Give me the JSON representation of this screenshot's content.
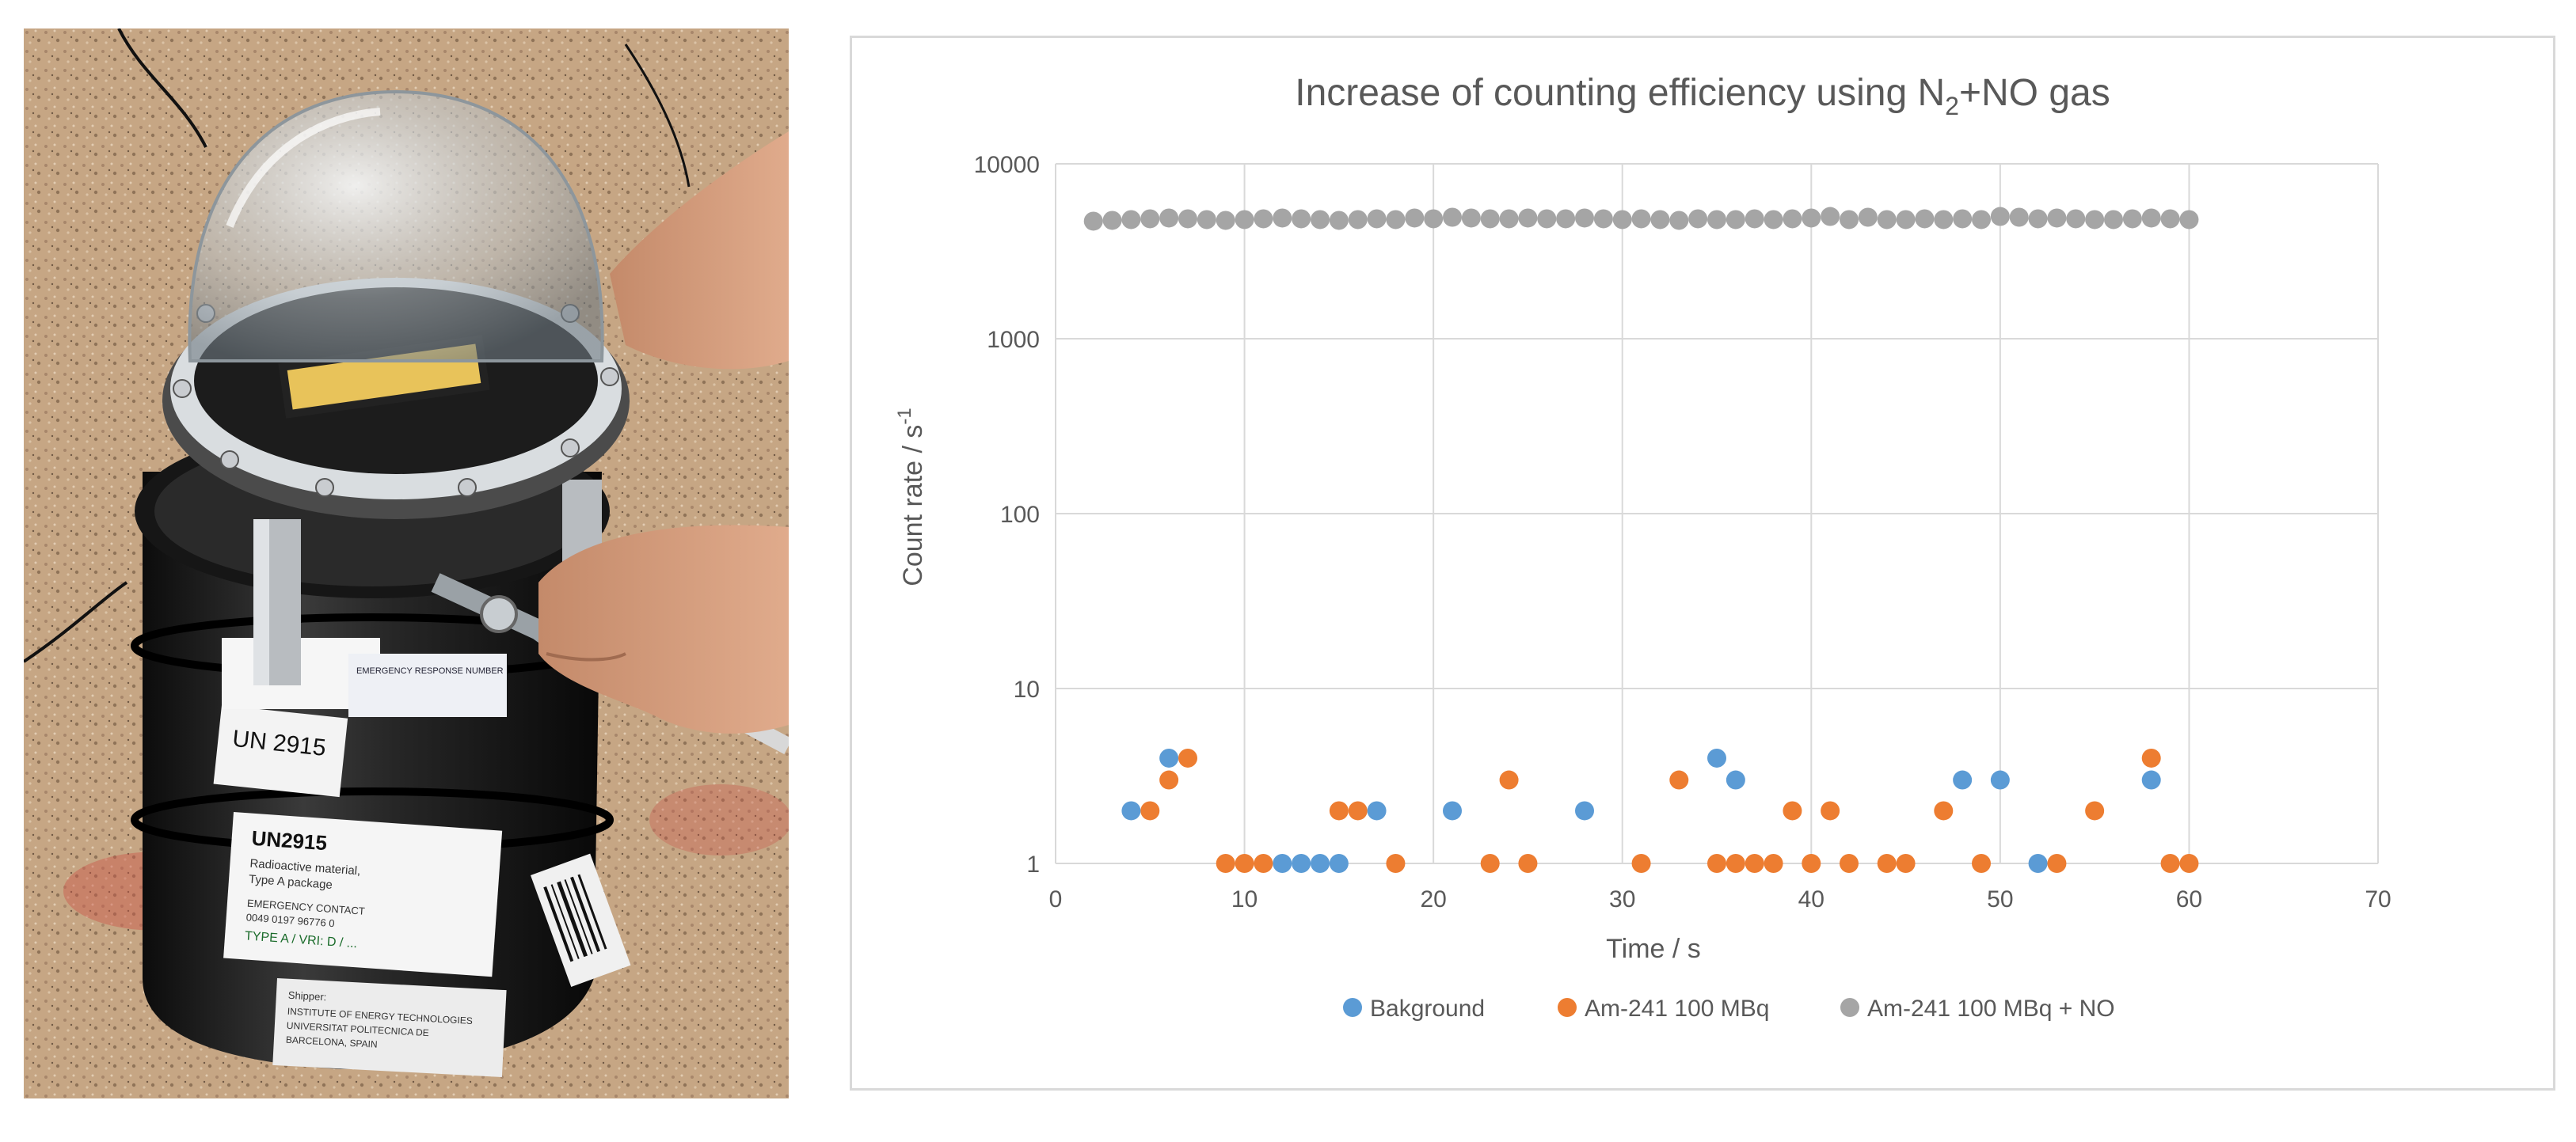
{
  "photo": {
    "label_un2915": "UN 2915",
    "label_un2915_body": "UN2915",
    "label_radioactive": "Radioactive material,",
    "label_type_a": "Type A package",
    "label_emergency": "EMERGENCY CONTACT",
    "label_phone": "0049 0197 96776 0",
    "label_handwritten": "TYPE A / VRI: D / ...",
    "label_emergency_response": "EMERGENCY RESPONSE NUMBER",
    "label_shipper": "Shipper:",
    "label_shipper_line": "INSTITUTE OF ENERGY TECHNOLOGIES",
    "label_shipper_univ": "UNIVERSITAT POLITECNICA DE",
    "label_shipper_city": "BARCELONA, SPAIN"
  },
  "chart_data": {
    "type": "scatter",
    "title_main": "Increase of counting efficiency using N",
    "title_sub": "2",
    "title_tail": "+NO gas",
    "xlabel": "Time / s",
    "ylabel_main": "Count rate  / s",
    "ylabel_sup": "-1",
    "xlim": [
      0,
      70
    ],
    "ylim": [
      1,
      10000
    ],
    "yscale": "log",
    "grid": true,
    "legend_position": "bottom",
    "x_ticks": [
      "0",
      "10",
      "20",
      "30",
      "40",
      "50",
      "60",
      "70"
    ],
    "y_ticks": [
      "1",
      "10",
      "100",
      "1000",
      "10000"
    ],
    "series": [
      {
        "name": "Bakground",
        "color": "#5b9bd5",
        "points": [
          [
            4,
            2
          ],
          [
            6,
            4
          ],
          [
            12,
            1
          ],
          [
            13,
            1
          ],
          [
            14,
            1
          ],
          [
            15,
            1
          ],
          [
            17,
            2
          ],
          [
            21,
            2
          ],
          [
            28,
            2
          ],
          [
            35,
            4
          ],
          [
            36,
            3
          ],
          [
            48,
            3
          ],
          [
            50,
            3
          ],
          [
            52,
            1
          ],
          [
            58,
            3
          ]
        ]
      },
      {
        "name": "Am-241 100 MBq",
        "color": "#ed7d31",
        "points": [
          [
            5,
            2
          ],
          [
            6,
            3
          ],
          [
            7,
            4
          ],
          [
            9,
            1
          ],
          [
            10,
            1
          ],
          [
            11,
            1
          ],
          [
            15,
            2
          ],
          [
            16,
            2
          ],
          [
            18,
            1
          ],
          [
            23,
            1
          ],
          [
            24,
            3
          ],
          [
            25,
            1
          ],
          [
            31,
            1
          ],
          [
            33,
            3
          ],
          [
            35,
            1
          ],
          [
            36,
            1
          ],
          [
            37,
            1
          ],
          [
            38,
            1
          ],
          [
            39,
            2
          ],
          [
            40,
            1
          ],
          [
            41,
            2
          ],
          [
            42,
            1
          ],
          [
            44,
            1
          ],
          [
            45,
            1
          ],
          [
            47,
            2
          ],
          [
            49,
            1
          ],
          [
            53,
            1
          ],
          [
            55,
            2
          ],
          [
            58,
            4
          ],
          [
            59,
            1
          ],
          [
            60,
            1
          ]
        ]
      },
      {
        "name": "Am-241 100 MBq + NO",
        "color": "#a5a5a5",
        "points": [
          [
            2,
            4700
          ],
          [
            3,
            4750
          ],
          [
            4,
            4800
          ],
          [
            5,
            4850
          ],
          [
            6,
            4900
          ],
          [
            7,
            4850
          ],
          [
            8,
            4800
          ],
          [
            9,
            4750
          ],
          [
            10,
            4800
          ],
          [
            11,
            4850
          ],
          [
            12,
            4900
          ],
          [
            13,
            4850
          ],
          [
            14,
            4800
          ],
          [
            15,
            4750
          ],
          [
            16,
            4800
          ],
          [
            17,
            4850
          ],
          [
            18,
            4800
          ],
          [
            19,
            4900
          ],
          [
            20,
            4850
          ],
          [
            21,
            4950
          ],
          [
            22,
            4900
          ],
          [
            23,
            4850
          ],
          [
            24,
            4850
          ],
          [
            25,
            4900
          ],
          [
            26,
            4850
          ],
          [
            27,
            4850
          ],
          [
            28,
            4900
          ],
          [
            29,
            4850
          ],
          [
            30,
            4800
          ],
          [
            31,
            4850
          ],
          [
            32,
            4800
          ],
          [
            33,
            4750
          ],
          [
            34,
            4850
          ],
          [
            35,
            4800
          ],
          [
            36,
            4800
          ],
          [
            37,
            4850
          ],
          [
            38,
            4800
          ],
          [
            39,
            4850
          ],
          [
            40,
            4900
          ],
          [
            41,
            5000
          ],
          [
            42,
            4800
          ],
          [
            43,
            4950
          ],
          [
            44,
            4800
          ],
          [
            45,
            4800
          ],
          [
            46,
            4850
          ],
          [
            47,
            4800
          ],
          [
            48,
            4850
          ],
          [
            49,
            4800
          ],
          [
            50,
            5000
          ],
          [
            51,
            4950
          ],
          [
            52,
            4850
          ],
          [
            53,
            4900
          ],
          [
            54,
            4850
          ],
          [
            55,
            4800
          ],
          [
            56,
            4800
          ],
          [
            57,
            4850
          ],
          [
            58,
            4900
          ],
          [
            59,
            4850
          ],
          [
            60,
            4800
          ]
        ]
      }
    ]
  }
}
